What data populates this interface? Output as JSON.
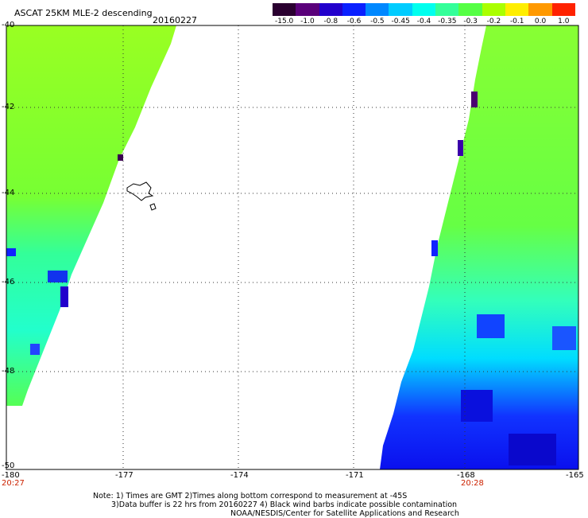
{
  "header": {
    "title": "ASCAT 25KM MLE-2 descending",
    "date": "20160227"
  },
  "colorbar": {
    "labels": [
      "-15.0",
      "-1.0",
      "-0.8",
      "-0.6",
      "-0.5",
      "-0.45",
      "-0.4",
      "-0.35",
      "-0.3",
      "-0.2",
      "-0.1",
      "0.0",
      "1.0"
    ],
    "colors": [
      "#2a0030",
      "#5a007a",
      "#2200cc",
      "#0a20ff",
      "#0088ff",
      "#00ccff",
      "#00ffee",
      "#33ff99",
      "#55ff44",
      "#aaff00",
      "#ffee00",
      "#ff9900",
      "#ff2200"
    ]
  },
  "axes": {
    "lon_labels": [
      "-180",
      "-177",
      "-174",
      "-171",
      "-168",
      "-165"
    ],
    "lat_labels": [
      "-40",
      "-42",
      "-44",
      "-46",
      "-48",
      "-50"
    ],
    "time_labels": [
      "20:27",
      "20:28"
    ]
  },
  "notes": {
    "line1": "Note: 1) Times are GMT 2)Times along bottom correspond to measurement at -45S",
    "line2": "3)Data buffer is 22 hrs from 20160227 4) Black wind barbs indicate possible contamination",
    "line3": "NOAA/NESDIS/Center for Satellite Applications and Research"
  }
}
